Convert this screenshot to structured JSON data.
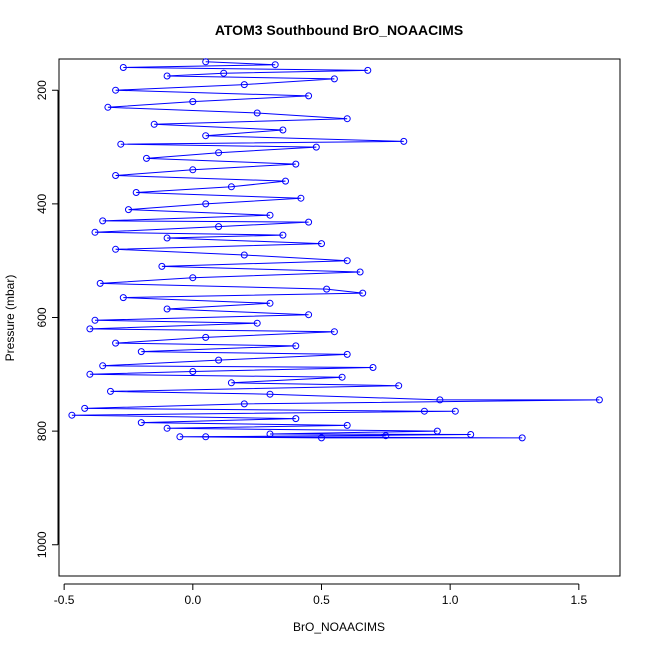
{
  "chart_data": {
    "type": "scatter",
    "title": "ATOM3 Southbound BrO_NOAACIMS",
    "xlabel": "BrO_NOAACIMS",
    "ylabel": "Pressure (mbar)",
    "xlim": [
      -0.52,
      1.66
    ],
    "ylim": [
      1055,
      145
    ],
    "y_reversed": true,
    "x_ticks": [
      -0.5,
      0.0,
      0.5,
      1.0,
      1.5
    ],
    "x_tick_labels": [
      "-0.5",
      "0.0",
      "0.5",
      "1.0",
      "1.5"
    ],
    "y_ticks": [
      200,
      400,
      600,
      800,
      1000
    ],
    "y_tick_labels": [
      "200",
      "400",
      "600",
      "800",
      "1000"
    ],
    "grid": false,
    "legend": "none",
    "point_style": "open-circle",
    "line_connected": true,
    "color": "#0000ff",
    "series": [
      {
        "points": [
          [
            0.05,
            150
          ],
          [
            0.32,
            155
          ],
          [
            -0.27,
            160
          ],
          [
            0.68,
            165
          ],
          [
            0.12,
            170
          ],
          [
            -0.1,
            175
          ],
          [
            0.55,
            180
          ],
          [
            0.2,
            190
          ],
          [
            -0.3,
            200
          ],
          [
            0.45,
            210
          ],
          [
            0.0,
            220
          ],
          [
            -0.33,
            230
          ],
          [
            0.25,
            240
          ],
          [
            0.6,
            250
          ],
          [
            -0.15,
            260
          ],
          [
            0.35,
            270
          ],
          [
            0.05,
            280
          ],
          [
            0.82,
            290
          ],
          [
            -0.28,
            295
          ],
          [
            0.48,
            300
          ],
          [
            0.1,
            310
          ],
          [
            -0.18,
            320
          ],
          [
            0.4,
            330
          ],
          [
            0.0,
            340
          ],
          [
            -0.3,
            350
          ],
          [
            0.36,
            360
          ],
          [
            0.15,
            370
          ],
          [
            -0.22,
            380
          ],
          [
            0.42,
            390
          ],
          [
            0.05,
            400
          ],
          [
            -0.25,
            410
          ],
          [
            0.3,
            420
          ],
          [
            -0.35,
            430
          ],
          [
            0.45,
            432
          ],
          [
            0.1,
            440
          ],
          [
            -0.38,
            450
          ],
          [
            0.35,
            455
          ],
          [
            -0.1,
            460
          ],
          [
            0.5,
            470
          ],
          [
            -0.3,
            480
          ],
          [
            0.2,
            490
          ],
          [
            0.6,
            500
          ],
          [
            -0.12,
            510
          ],
          [
            0.65,
            520
          ],
          [
            0.0,
            530
          ],
          [
            -0.36,
            540
          ],
          [
            0.52,
            550
          ],
          [
            0.66,
            557
          ],
          [
            -0.27,
            565
          ],
          [
            0.3,
            575
          ],
          [
            -0.1,
            585
          ],
          [
            0.45,
            595
          ],
          [
            -0.38,
            605
          ],
          [
            0.25,
            610
          ],
          [
            -0.4,
            620
          ],
          [
            0.55,
            625
          ],
          [
            0.05,
            635
          ],
          [
            -0.3,
            645
          ],
          [
            0.4,
            650
          ],
          [
            -0.2,
            660
          ],
          [
            0.6,
            665
          ],
          [
            0.1,
            675
          ],
          [
            -0.35,
            685
          ],
          [
            0.7,
            688
          ],
          [
            0.0,
            695
          ],
          [
            -0.4,
            700
          ],
          [
            0.58,
            705
          ],
          [
            0.15,
            715
          ],
          [
            0.8,
            720
          ],
          [
            -0.32,
            730
          ],
          [
            0.3,
            735
          ],
          [
            0.96,
            745
          ],
          [
            1.58,
            745
          ],
          [
            0.2,
            752
          ],
          [
            -0.42,
            760
          ],
          [
            0.9,
            765
          ],
          [
            1.02,
            765
          ],
          [
            -0.47,
            772
          ],
          [
            0.4,
            778
          ],
          [
            -0.2,
            785
          ],
          [
            0.6,
            790
          ],
          [
            -0.1,
            795
          ],
          [
            0.95,
            800
          ],
          [
            0.3,
            805
          ],
          [
            1.08,
            806
          ],
          [
            0.05,
            810
          ],
          [
            1.28,
            812
          ],
          [
            0.5,
            812
          ],
          [
            -0.05,
            810
          ],
          [
            0.75,
            808
          ]
        ]
      }
    ]
  }
}
